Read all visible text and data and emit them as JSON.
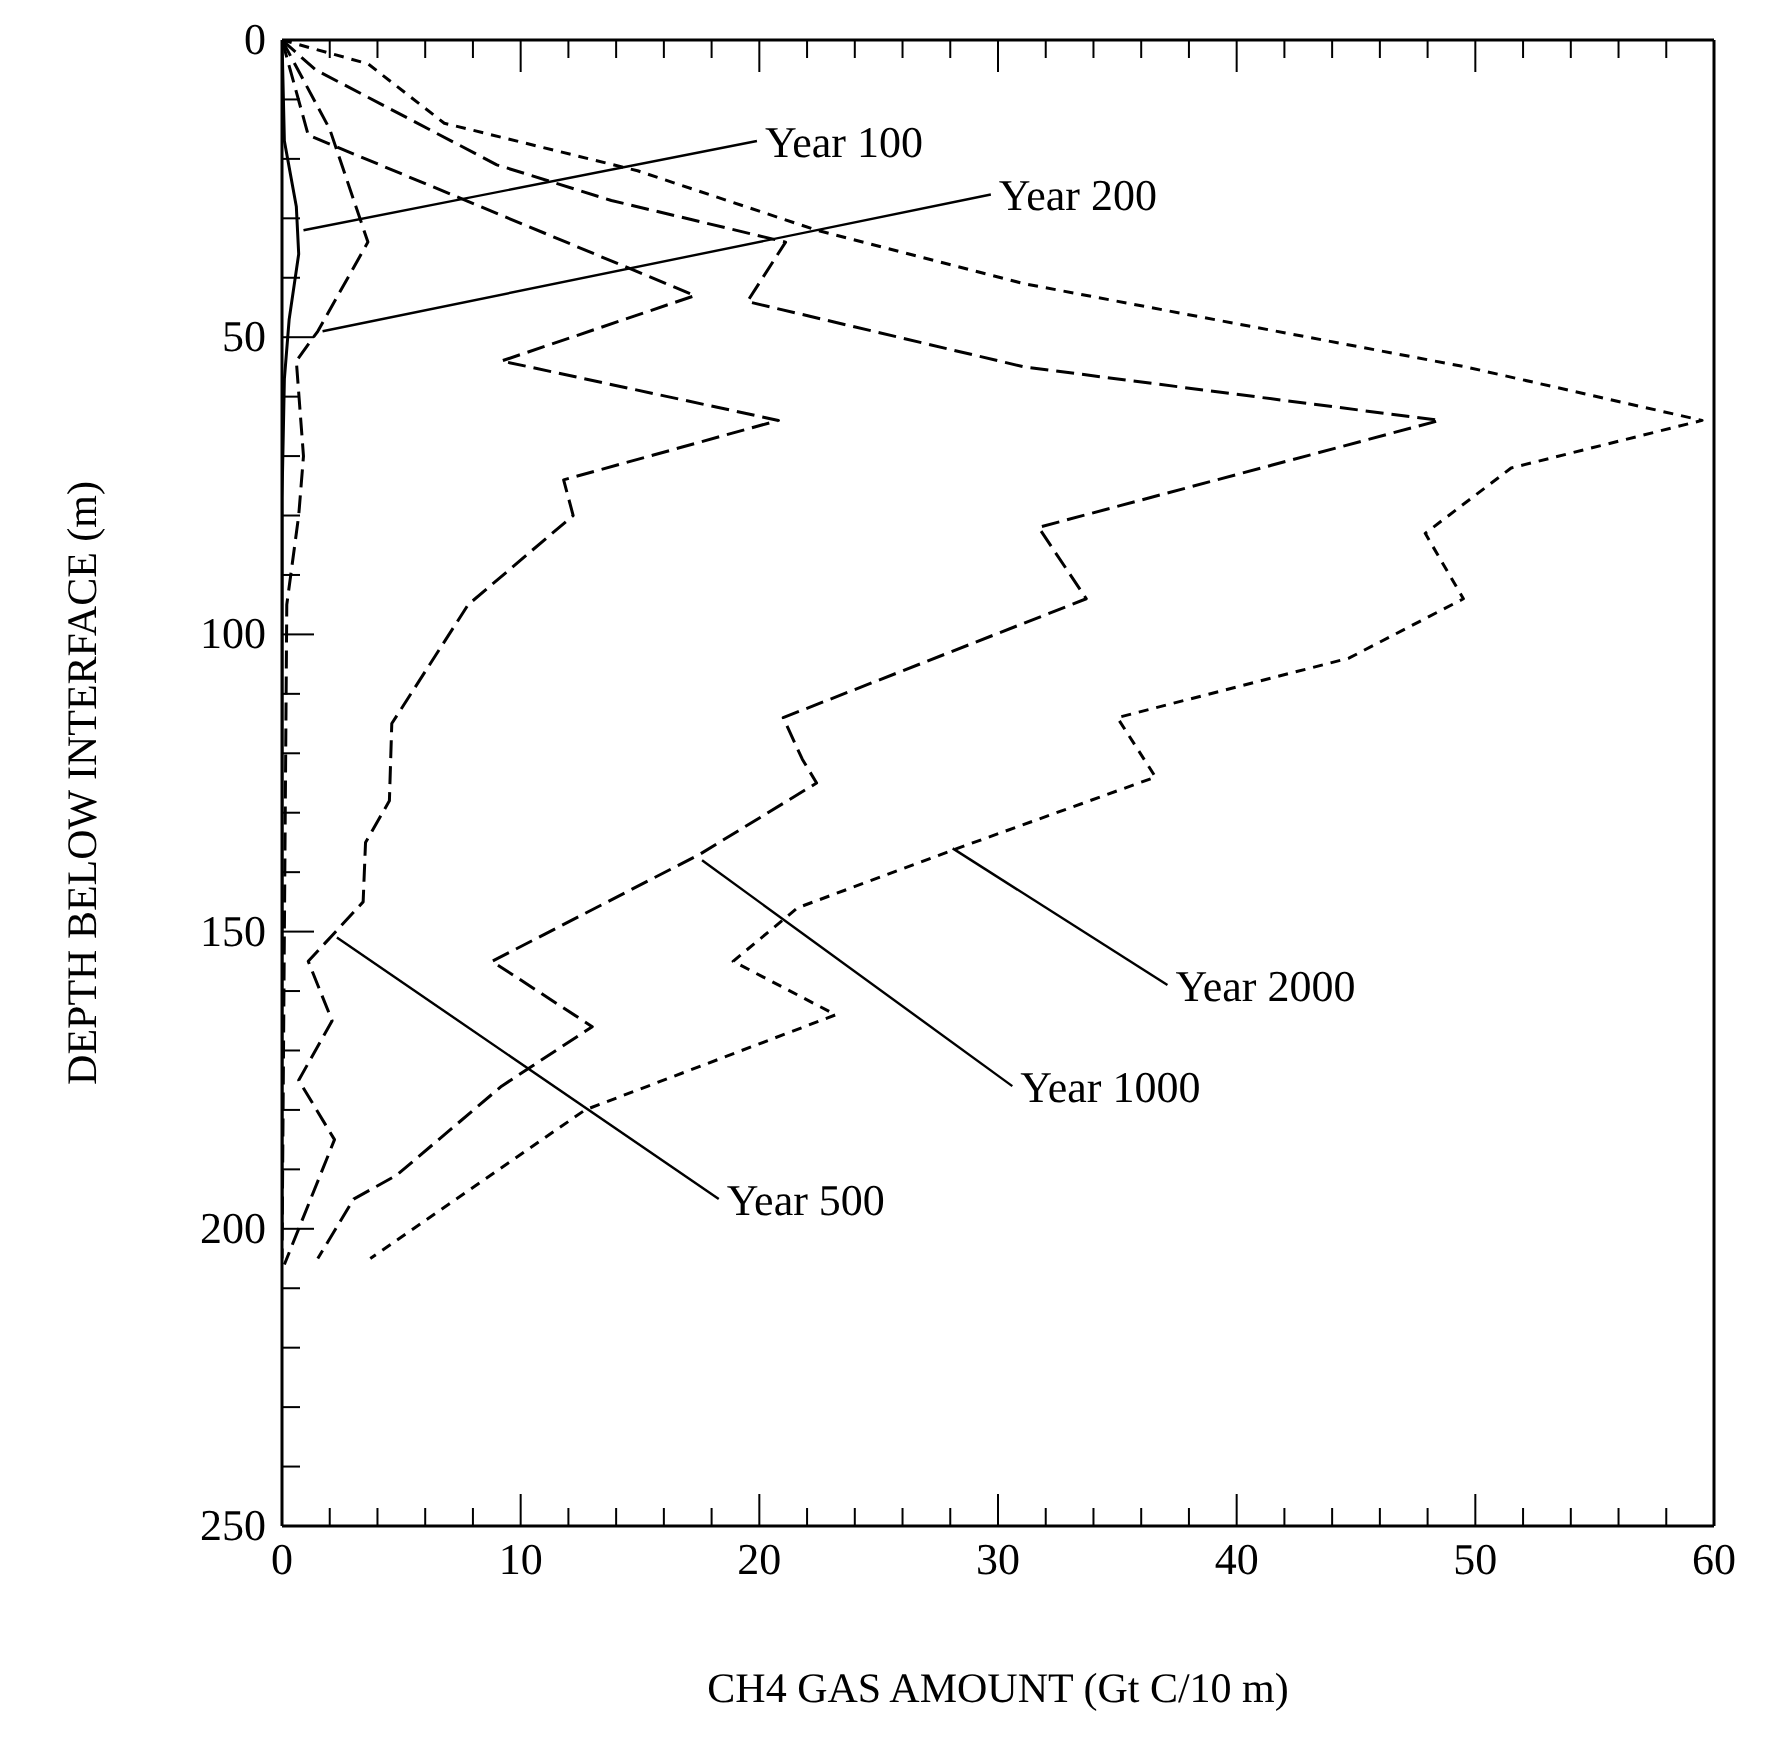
{
  "chart_data": {
    "type": "line",
    "orientation": "horizontal",
    "xlabel": "CH4 GAS AMOUNT (Gt C/10 m)",
    "ylabel": "DEPTH BELOW INTERFACE (m)",
    "xlim": [
      0,
      60
    ],
    "ylim": [
      250,
      0
    ],
    "xticks": [
      0,
      {
        "value": 2,
        "label": null
      },
      {
        "value": 4,
        "label": null
      },
      {
        "value": 6,
        "label": null
      },
      {
        "value": 8,
        "label": null
      },
      10,
      {
        "value": 12,
        "label": null
      },
      {
        "value": 14,
        "label": null
      },
      {
        "value": 16,
        "label": null
      },
      {
        "value": 18,
        "label": null
      },
      20,
      {
        "value": 22,
        "label": null
      },
      {
        "value": 24,
        "label": null
      },
      {
        "value": 26,
        "label": null
      },
      {
        "value": 28,
        "label": null
      },
      30,
      {
        "value": 32,
        "label": null
      },
      {
        "value": 34,
        "label": null
      },
      {
        "value": 36,
        "label": null
      },
      {
        "value": 38,
        "label": null
      },
      40,
      {
        "value": 42,
        "label": null
      },
      {
        "value": 44,
        "label": null
      },
      {
        "value": 46,
        "label": null
      },
      {
        "value": 48,
        "label": null
      },
      50,
      {
        "value": 52,
        "label": null
      },
      {
        "value": 54,
        "label": null
      },
      {
        "value": 56,
        "label": null
      },
      {
        "value": 58,
        "label": null
      },
      60
    ],
    "yticks": [
      0,
      {
        "value": 10,
        "label": null
      },
      {
        "value": 20,
        "label": null
      },
      {
        "value": 30,
        "label": null
      },
      {
        "value": 40,
        "label": null
      },
      50,
      {
        "value": 60,
        "label": null
      },
      {
        "value": 70,
        "label": null
      },
      {
        "value": 80,
        "label": null
      },
      {
        "value": 90,
        "label": null
      },
      100,
      {
        "value": 110,
        "label": null
      },
      {
        "value": 120,
        "label": null
      },
      {
        "value": 130,
        "label": null
      },
      {
        "value": 140,
        "label": null
      },
      150,
      {
        "value": 160,
        "label": null
      },
      {
        "value": 170,
        "label": null
      },
      {
        "value": 180,
        "label": null
      },
      {
        "value": 190,
        "label": null
      },
      200,
      {
        "value": 210,
        "label": null
      },
      {
        "value": 220,
        "label": null
      },
      {
        "value": 230,
        "label": null
      },
      {
        "value": 240,
        "label": null
      },
      250
    ],
    "series": [
      {
        "color": "#000000",
        "line_style": "solid",
        "x": [
          0,
          17,
          28,
          36,
          47,
          57,
          77,
          100,
          150,
          200
        ],
        "values": [
          0,
          0.1,
          0.6,
          0.7,
          0.3,
          0.1,
          0,
          0,
          0,
          0
        ]
      },
      {
        "color": "#000000",
        "line_style": "dashed",
        "x": [
          0,
          15,
          34,
          49,
          54,
          70,
          80,
          95,
          150,
          205
        ],
        "values": [
          0,
          2,
          3.6,
          1.5,
          0.6,
          0.9,
          0.7,
          0.2,
          0.1,
          0
        ]
      },
      {
        "color": "#000000",
        "line_style": "dashed",
        "x": [
          0,
          16,
          43,
          54,
          64,
          74,
          80,
          95,
          115,
          128,
          135,
          145,
          155,
          165,
          175,
          185,
          206
        ],
        "values": [
          0,
          1.1,
          17.3,
          9.2,
          20.8,
          11.8,
          12.2,
          7.8,
          4.6,
          4.5,
          3.5,
          3.4,
          1.1,
          2.1,
          0.7,
          2.2,
          0.1
        ]
      },
      {
        "color": "#000000",
        "line_style": "dashed",
        "x": [
          0,
          5,
          21,
          27,
          34,
          44,
          55,
          64,
          82,
          94,
          114,
          121,
          125,
          137,
          155,
          166,
          176,
          191,
          195,
          205
        ],
        "values": [
          0,
          1.4,
          9,
          13.8,
          21.1,
          19.5,
          31.1,
          48.5,
          31.7,
          33.7,
          21,
          21.8,
          22.4,
          17.5,
          8.8,
          13,
          9.2,
          4.8,
          3,
          1.5
        ]
      },
      {
        "color": "#000000",
        "line_style": "dotted",
        "x": [
          0,
          4,
          14,
          22,
          32,
          41,
          55,
          64,
          72,
          83,
          94,
          104,
          114,
          124,
          136,
          146,
          155,
          164,
          180,
          205
        ],
        "values": [
          0,
          3.6,
          6.8,
          14.9,
          22.4,
          31.1,
          49.6,
          59.5,
          51.5,
          47.9,
          49.5,
          44.7,
          35,
          36.6,
          28.3,
          21.6,
          18.9,
          23.2,
          12.7,
          3.7
        ]
      }
    ],
    "annotations": [
      {
        "text": "Year 100",
        "x": 0.9,
        "y": 32
      },
      {
        "text": "Year 200",
        "x": 1.7,
        "y": 49
      },
      {
        "text": "Year 2000",
        "x": 28.1,
        "y": 136
      },
      {
        "text": "Year 1000",
        "x": 17.6,
        "y": 138
      },
      {
        "text": "Year 500",
        "x": 2.3,
        "y": 151
      }
    ]
  }
}
